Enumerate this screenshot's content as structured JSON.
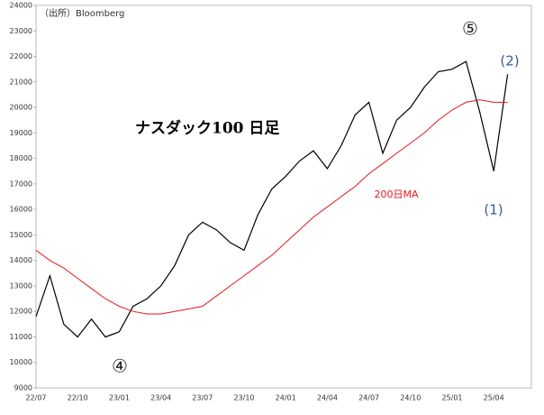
{
  "chart_data": {
    "type": "line",
    "title": "ナスダック100 日足",
    "source": "（出所）Bloomberg",
    "annotations": [
      "⑤",
      "④",
      "(1)",
      "(2)",
      "200日MA"
    ],
    "categories": [
      "22/07",
      null,
      null,
      "22/10",
      null,
      null,
      "23/01",
      null,
      null,
      "23/04",
      null,
      null,
      "23/07",
      null,
      null,
      "23/10",
      null,
      null,
      "24/01",
      null,
      null,
      "24/04",
      null,
      null,
      "24/07",
      null,
      null,
      "24/10",
      null,
      null,
      "25/01",
      null,
      null,
      "25/04",
      null
    ],
    "series": [
      {
        "name": "ナスダック100",
        "color": "#000000",
        "values": [
          11800,
          13400,
          11500,
          11000,
          11700,
          11000,
          11200,
          12200,
          12500,
          13000,
          13800,
          15000,
          15500,
          15200,
          14700,
          14400,
          15800,
          16800,
          17300,
          17900,
          18300,
          17600,
          18500,
          19700,
          20200,
          18200,
          19500,
          20000,
          20800,
          21400,
          21500,
          21800,
          19800,
          17500,
          21300
        ]
      },
      {
        "name": "200日MA",
        "color": "#e8161b",
        "values": [
          14400,
          14000,
          13700,
          13300,
          12900,
          12500,
          12200,
          12000,
          11900,
          11900,
          12000,
          12100,
          12200,
          12600,
          13000,
          13400,
          13800,
          14200,
          14700,
          15200,
          15700,
          16100,
          16500,
          16900,
          17400,
          17800,
          18200,
          18600,
          19000,
          19500,
          19900,
          20200,
          20300,
          20200,
          20200
        ]
      }
    ],
    "ylim": [
      9000,
      24000
    ],
    "yticks": [
      9000,
      10000,
      11000,
      12000,
      13000,
      14000,
      15000,
      16000,
      17000,
      18000,
      19000,
      20000,
      21000,
      22000,
      23000,
      24000
    ]
  }
}
